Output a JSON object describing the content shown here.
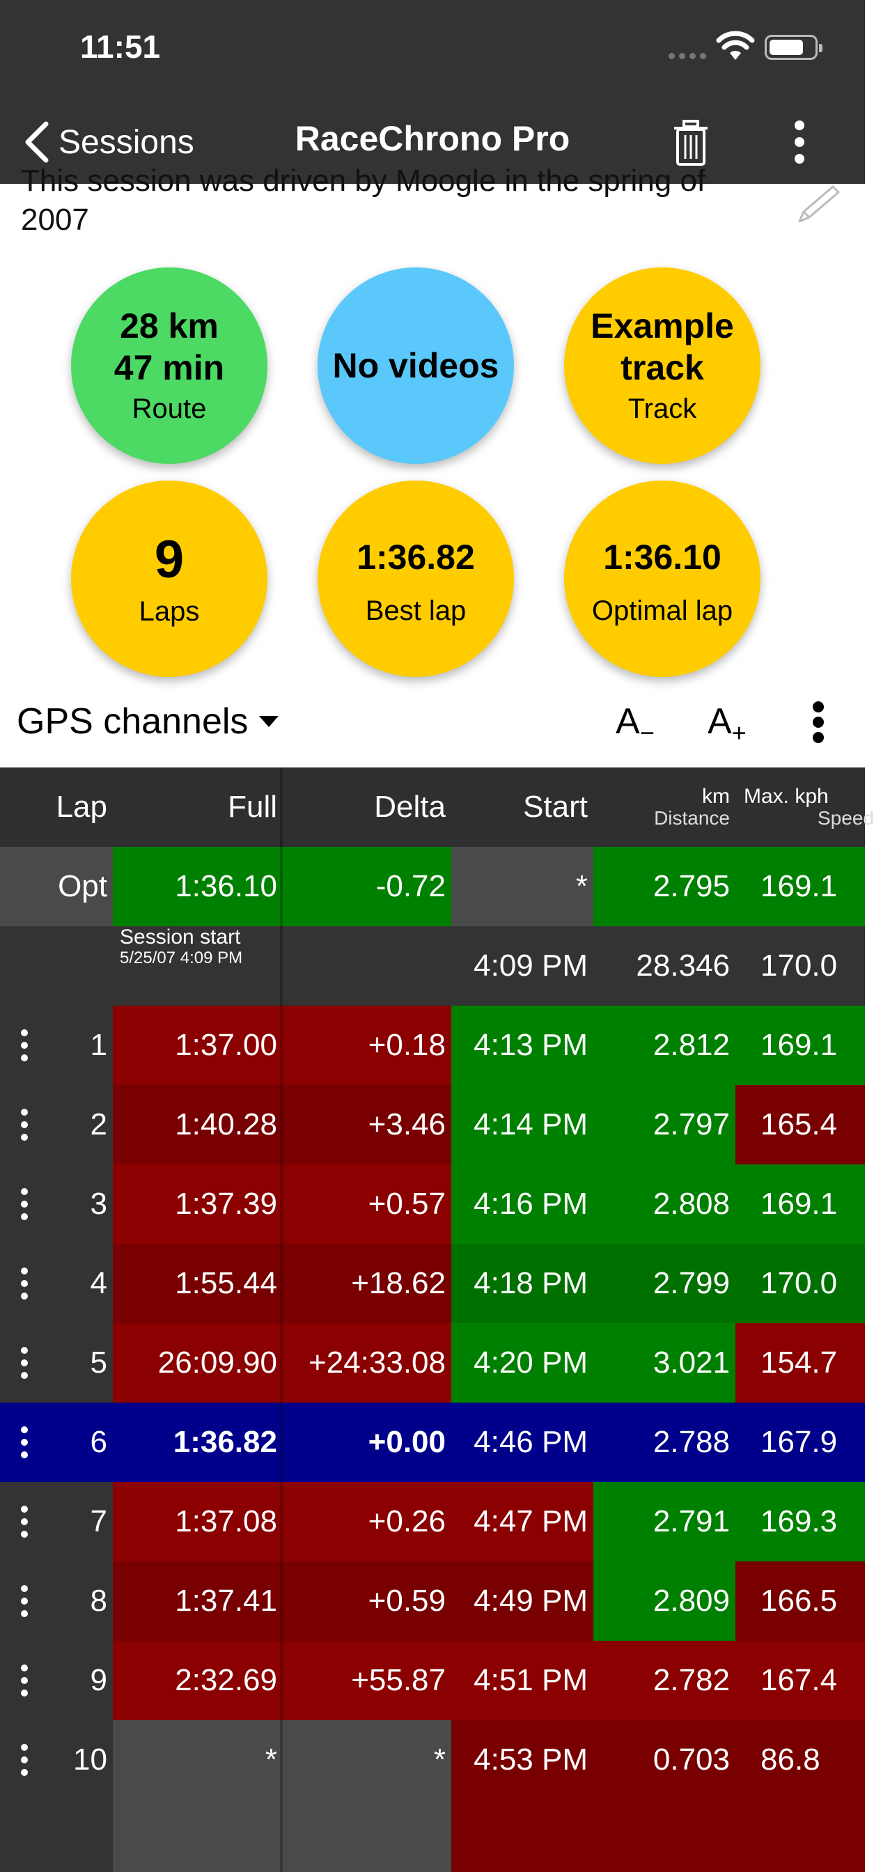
{
  "status_bar": {
    "time": "11:51"
  },
  "nav": {
    "back_label": "Sessions",
    "title": "RaceChrono Pro"
  },
  "description": "This session was driven by Moogle in the spring of 2007",
  "stats": [
    {
      "main": "28 km\n47 min",
      "label": "Route",
      "color": "#4cd964"
    },
    {
      "main": "No videos",
      "label": "",
      "color": "#5ac8fa"
    },
    {
      "main": "Example track",
      "label": "Track",
      "color": "#ffcc00"
    },
    {
      "main": "9",
      "label": "Laps",
      "color": "#ffcc00"
    },
    {
      "main": "1:36.82",
      "label": "Best lap",
      "color": "#ffcc00"
    },
    {
      "main": "1:36.10",
      "label": "Optimal lap",
      "color": "#ffcc00"
    }
  ],
  "toolbar": {
    "channels_label": "GPS channels",
    "font_minus": "A",
    "font_plus": "A"
  },
  "table": {
    "headers": {
      "lap": "Lap",
      "full": "Full",
      "delta": "Delta",
      "start": "Start",
      "km_unit": "km",
      "km_label": "Distance",
      "max_unit": "Max. kph",
      "max_label": "Speed"
    },
    "opt_row": {
      "lap": "Opt",
      "full": "1:36.10",
      "delta": "-0.72",
      "start": "*",
      "km": "2.795",
      "max": "169.1"
    },
    "session_row": {
      "label": "Session start",
      "date": "5/25/07 4:09 PM",
      "start": "4:09 PM",
      "km": "28.346",
      "max": "170.0"
    },
    "rows": [
      {
        "lap": "1",
        "full": "1:37.00",
        "delta": "+0.18",
        "start": "4:13 PM",
        "km": "2.812",
        "max": "169.1"
      },
      {
        "lap": "2",
        "full": "1:40.28",
        "delta": "+3.46",
        "start": "4:14 PM",
        "km": "2.797",
        "max": "165.4"
      },
      {
        "lap": "3",
        "full": "1:37.39",
        "delta": "+0.57",
        "start": "4:16 PM",
        "km": "2.808",
        "max": "169.1"
      },
      {
        "lap": "4",
        "full": "1:55.44",
        "delta": "+18.62",
        "start": "4:18 PM",
        "km": "2.799",
        "max": "170.0"
      },
      {
        "lap": "5",
        "full": "26:09.90",
        "delta": "+24:33.08",
        "start": "4:20 PM",
        "km": "3.021",
        "max": "154.7"
      },
      {
        "lap": "6",
        "full": "1:36.82",
        "delta": "+0.00",
        "start": "4:46 PM",
        "km": "2.788",
        "max": "167.9"
      },
      {
        "lap": "7",
        "full": "1:37.08",
        "delta": "+0.26",
        "start": "4:47 PM",
        "km": "2.791",
        "max": "169.3"
      },
      {
        "lap": "8",
        "full": "1:37.41",
        "delta": "+0.59",
        "start": "4:49 PM",
        "km": "2.809",
        "max": "166.5"
      },
      {
        "lap": "9",
        "full": "2:32.69",
        "delta": "+55.87",
        "start": "4:51 PM",
        "km": "2.782",
        "max": "167.4"
      },
      {
        "lap": "10",
        "full": "*",
        "delta": "*",
        "start": "4:53 PM",
        "km": "0.703",
        "max": "86.8"
      }
    ]
  },
  "colors": {
    "best_green": "#008000",
    "worse_red": "#8b0000",
    "best_lap_blue": "#00008b",
    "bar_dark": "#333333"
  }
}
